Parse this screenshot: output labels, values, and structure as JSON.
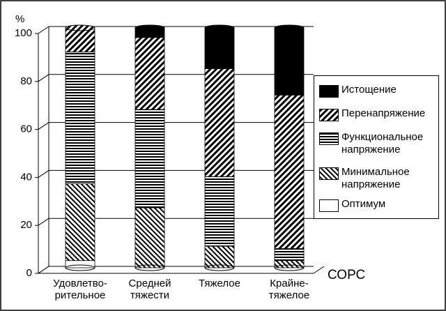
{
  "chart_data": {
    "type": "stacked-bar",
    "y_unit": "%",
    "x_label": "СОРС",
    "categories": [
      "Удовлетво-\nрительное",
      "Средней\nтяжести",
      "Тяжелое",
      "Крайне-\nтяжелое"
    ],
    "series": [
      {
        "name": "Оптимум",
        "color": "#ffffff",
        "pattern": "none",
        "values": [
          3,
          0,
          0,
          0
        ]
      },
      {
        "name": "Минимальное\nнапряжение",
        "color": "#000000",
        "pattern": "diag-left",
        "values": [
          32,
          25,
          9,
          3
        ]
      },
      {
        "name": "Функциональное\nнапряжение",
        "color": "#000000",
        "pattern": "horizontal",
        "values": [
          55,
          41,
          29,
          5
        ]
      },
      {
        "name": "Перенапряжение",
        "color": "#000000",
        "pattern": "diag-right",
        "values": [
          10,
          30,
          45,
          64
        ]
      },
      {
        "name": "Истощение",
        "color": "#000000",
        "pattern": "solid",
        "values": [
          0,
          4,
          17,
          28
        ]
      }
    ],
    "ylim": [
      0,
      100
    ],
    "yticks": [
      0,
      20,
      40,
      60,
      80,
      100
    ],
    "grid": true,
    "legend": "right"
  }
}
